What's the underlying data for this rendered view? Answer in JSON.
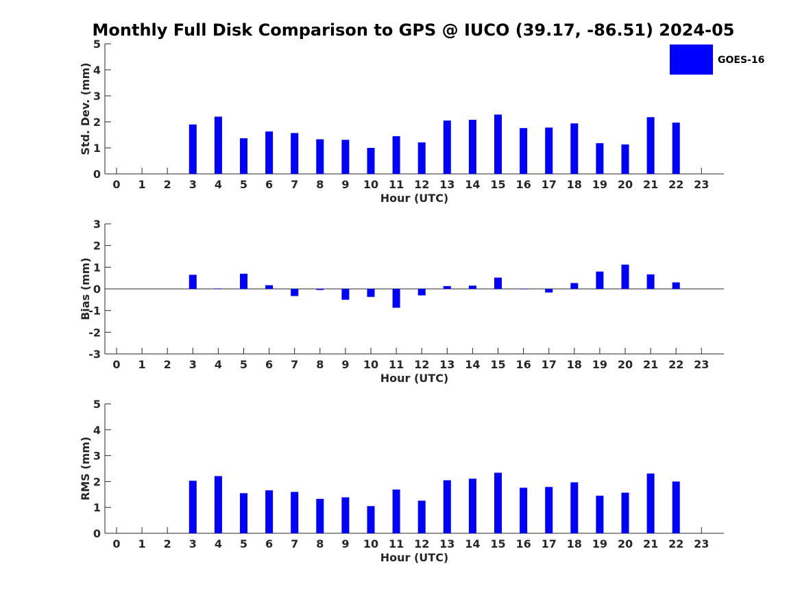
{
  "chart_data": {
    "type": "bar",
    "title": "Monthly Full Disk Comparison to GPS @ IUCO (39.17, -86.51) 2024-05",
    "legend": {
      "label": "GOES-16",
      "color": "#0000ff",
      "placement": "top-right"
    },
    "categories": [
      "0",
      "1",
      "2",
      "3",
      "4",
      "5",
      "6",
      "7",
      "8",
      "9",
      "10",
      "11",
      "12",
      "13",
      "14",
      "15",
      "16",
      "17",
      "18",
      "19",
      "20",
      "21",
      "22",
      "23"
    ],
    "panels": [
      {
        "name": "std-dev",
        "ylabel": "Std. Dev. (mm)",
        "xlabel": "Hour (UTC)",
        "ylim": [
          0,
          5
        ],
        "yticks": [
          "0",
          "1",
          "2",
          "3",
          "4",
          "5"
        ],
        "series": [
          {
            "name": "GOES-16",
            "values": [
              null,
              null,
              null,
              1.9,
              2.2,
              1.37,
              1.63,
              1.57,
              1.33,
              1.31,
              1.0,
              1.45,
              1.21,
              2.05,
              2.08,
              2.28,
              1.76,
              1.78,
              1.94,
              1.18,
              1.13,
              2.18,
              1.97,
              null
            ]
          }
        ]
      },
      {
        "name": "bias",
        "ylabel": "Bias (mm)",
        "xlabel": "Hour (UTC)",
        "ylim": [
          -3,
          3
        ],
        "yticks": [
          "-3",
          "-2",
          "-1",
          "0",
          "1",
          "2",
          "3"
        ],
        "series": [
          {
            "name": "GOES-16",
            "values": [
              null,
              null,
              null,
              0.65,
              0.02,
              0.7,
              0.17,
              -0.33,
              -0.05,
              -0.5,
              -0.37,
              -0.87,
              -0.3,
              0.13,
              0.15,
              0.52,
              0.0,
              -0.17,
              0.27,
              0.8,
              1.12,
              0.67,
              0.3,
              null
            ]
          }
        ]
      },
      {
        "name": "rms",
        "ylabel": "RMS (mm)",
        "xlabel": "Hour (UTC)",
        "ylim": [
          0,
          5
        ],
        "yticks": [
          "0",
          "1",
          "2",
          "3",
          "4",
          "5"
        ],
        "series": [
          {
            "name": "GOES-16",
            "values": [
              null,
              null,
              null,
              2.03,
              2.21,
              1.55,
              1.66,
              1.6,
              1.33,
              1.39,
              1.05,
              1.69,
              1.26,
              2.05,
              2.11,
              2.34,
              1.76,
              1.79,
              1.97,
              1.45,
              1.57,
              2.31,
              2.0,
              null
            ]
          }
        ]
      }
    ]
  }
}
